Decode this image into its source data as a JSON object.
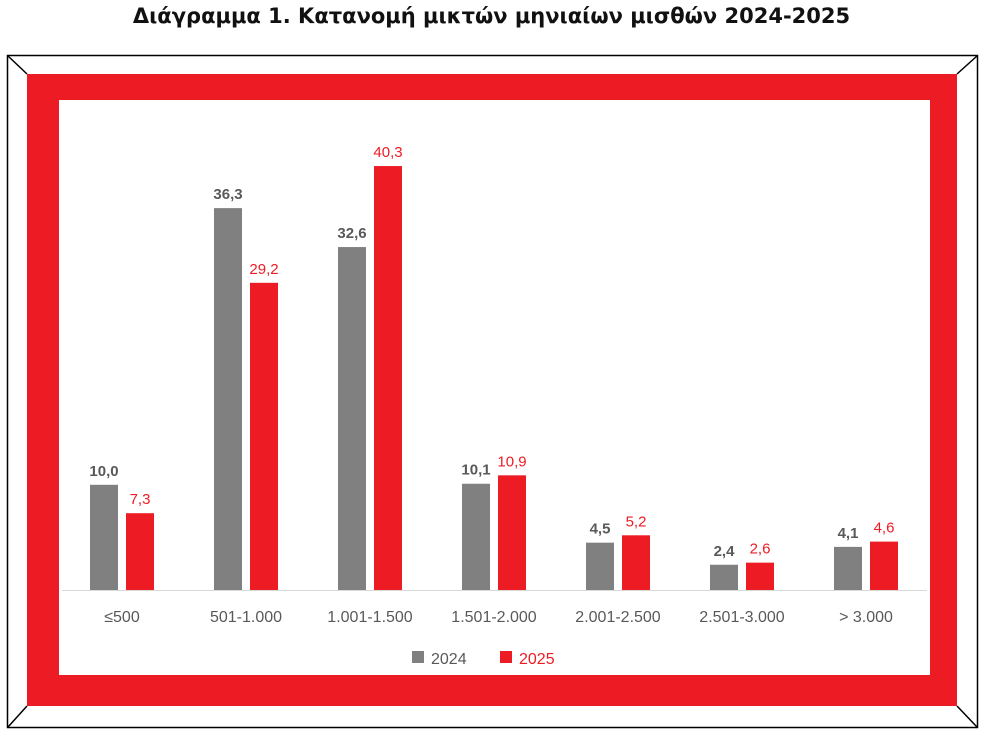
{
  "chart_data": {
    "type": "bar",
    "title": "Διάγραμμα 1. Κατανομή μικτών μηνιαίων μισθών 2024-2025",
    "categories": [
      "≤500",
      "501-1.000",
      "1.001-1.500",
      "1.501-2.000",
      "2.001-2.500",
      "2.501-3.000",
      "> 3.000"
    ],
    "series": [
      {
        "name": "2024",
        "color": "#808080",
        "values": [
          10.0,
          36.3,
          32.6,
          10.1,
          4.5,
          2.4,
          4.1
        ],
        "labels": [
          "10,0",
          "36,3",
          "32,6",
          "10,1",
          "4,5",
          "2,4",
          "4,1"
        ]
      },
      {
        "name": "2025",
        "color": "#ED1C24",
        "values": [
          7.3,
          29.2,
          40.3,
          10.9,
          5.2,
          2.6,
          4.6
        ],
        "labels": [
          "7,3",
          "29,2",
          "40,3",
          "10,9",
          "5,2",
          "2,6",
          "4,6"
        ]
      }
    ],
    "ylim": [
      0,
      45
    ],
    "grid": false,
    "legend": "bottom",
    "frame_color": "#ED1C24"
  }
}
